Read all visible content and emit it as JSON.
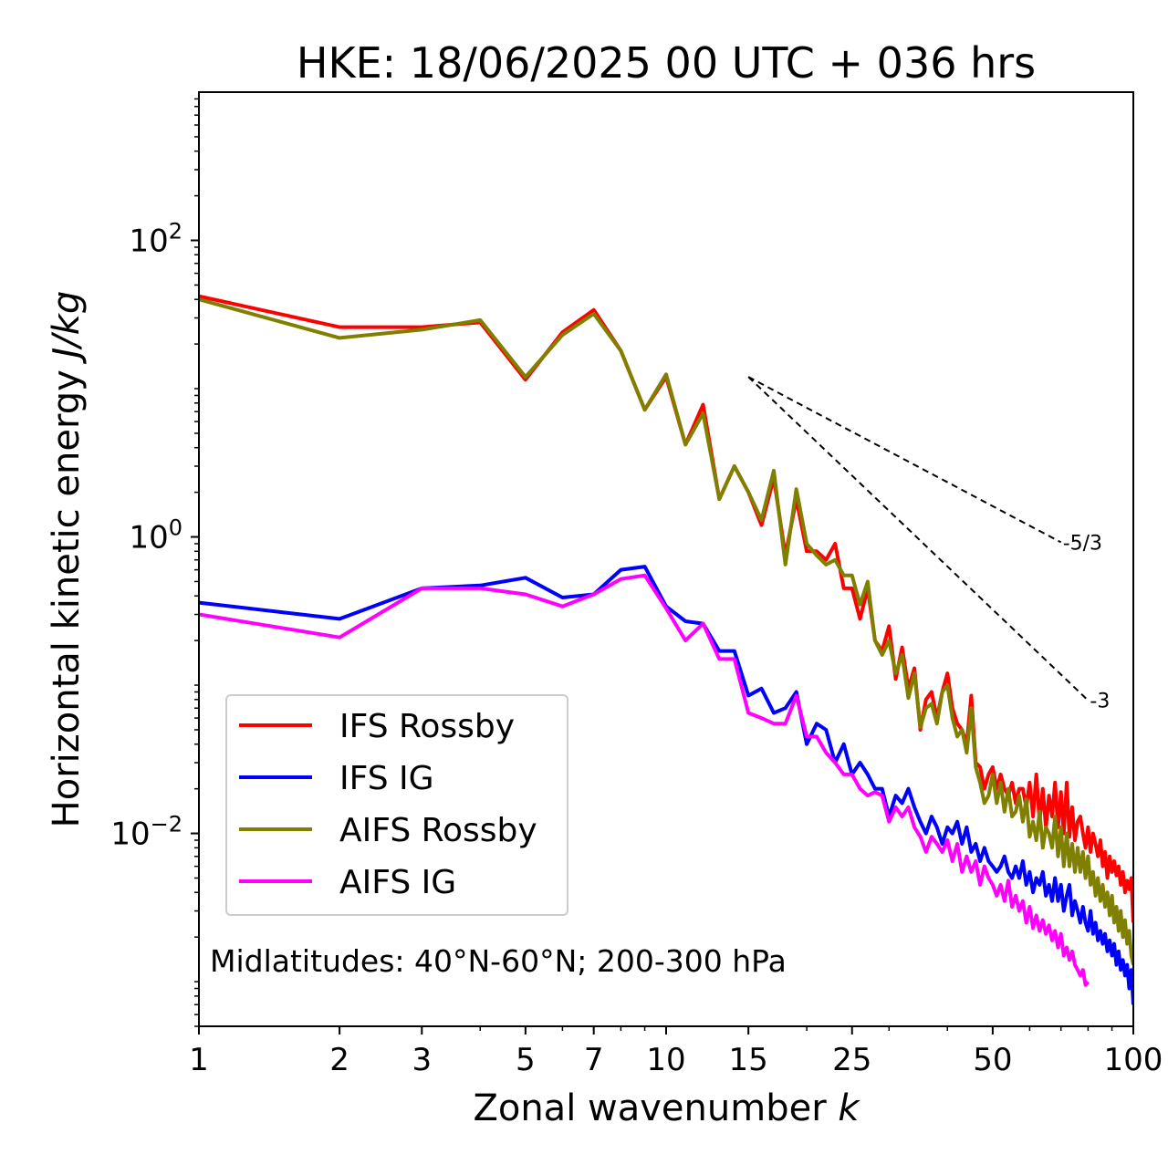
{
  "chart_data": {
    "type": "line",
    "title": "HKE: 18/06/2025 00 UTC + 036 hrs",
    "xlabel": "Zonal wavenumber ",
    "xlabel_var": "k",
    "ylabel": "Horizontal kinetic energy ",
    "ylabel_unit": "J/kg",
    "xscale": "log",
    "yscale": "log",
    "xlim": [
      1,
      100
    ],
    "ylim": [
      0.0005,
      1000
    ],
    "grid": false,
    "legend_position": "lower-left",
    "annotation": "Midlatitudes: 40°N-60°N; 200-300 hPa",
    "x_ticks": [
      1,
      2,
      3,
      5,
      7,
      10,
      15,
      25,
      50,
      100
    ],
    "x_tick_labels": [
      "1",
      "2",
      "3",
      "5",
      "7",
      "10",
      "15",
      "25",
      "50",
      "100"
    ],
    "y_ticks": [
      {
        "value": 100,
        "base": "10",
        "exp": "2"
      },
      {
        "value": 1,
        "base": "10",
        "exp": "0"
      },
      {
        "value": 0.01,
        "base": "10",
        "exp": "−2"
      }
    ],
    "reference_lines": [
      {
        "label": "-5/3",
        "slope": -1.6667,
        "x_start": 15,
        "y_start": 12,
        "x_end": 70,
        "y_end": 0.92
      },
      {
        "label": "-3",
        "slope": -3,
        "x_start": 15,
        "y_start": 12,
        "x_end": 80,
        "y_end": 0.079
      }
    ],
    "series": [
      {
        "name": "IFS Rossby",
        "color": "#ff0000",
        "x": [
          1,
          2,
          3,
          4,
          5,
          6,
          7,
          8,
          9,
          10,
          11,
          12,
          13,
          14,
          15,
          16,
          17,
          18,
          19,
          20,
          21,
          22,
          23,
          24,
          25,
          26,
          27,
          28,
          29,
          30,
          31,
          32,
          33,
          34,
          35,
          36,
          37,
          38,
          39,
          40,
          41,
          42,
          43,
          44,
          45,
          46,
          47,
          48,
          49,
          50,
          51,
          52,
          53,
          54,
          55,
          56,
          57,
          58,
          59,
          60,
          61,
          62,
          63,
          64,
          65,
          66,
          67,
          68,
          69,
          70,
          71,
          72,
          73,
          74,
          75,
          76,
          77,
          78,
          79,
          80,
          81,
          82,
          83,
          84,
          85,
          86,
          87,
          88,
          89,
          90,
          91,
          92,
          93,
          94,
          95,
          96,
          97,
          98,
          99,
          100
        ],
        "y": [
          42,
          26,
          26,
          28,
          11.5,
          24,
          34,
          18,
          7.2,
          12,
          4.2,
          7.8,
          1.8,
          3.0,
          2.0,
          1.2,
          2.5,
          0.75,
          1.8,
          0.8,
          0.8,
          0.7,
          0.9,
          0.45,
          0.45,
          0.28,
          0.45,
          0.2,
          0.17,
          0.25,
          0.11,
          0.18,
          0.095,
          0.13,
          0.05,
          0.08,
          0.09,
          0.06,
          0.09,
          0.12,
          0.07,
          0.055,
          0.05,
          0.04,
          0.085,
          0.03,
          0.028,
          0.02,
          0.025,
          0.028,
          0.02,
          0.025,
          0.02,
          0.018,
          0.022,
          0.016,
          0.02,
          0.02,
          0.015,
          0.022,
          0.013,
          0.025,
          0.012,
          0.02,
          0.011,
          0.018,
          0.013,
          0.022,
          0.011,
          0.019,
          0.01,
          0.022,
          0.0095,
          0.015,
          0.009,
          0.012,
          0.013,
          0.01,
          0.008,
          0.011,
          0.0075,
          0.01,
          0.0085,
          0.007,
          0.009,
          0.006,
          0.0075,
          0.005,
          0.007,
          0.0055,
          0.0065,
          0.0052,
          0.006,
          0.0045,
          0.0055,
          0.004,
          0.0048,
          0.0042,
          0.005,
          0.0025
        ]
      },
      {
        "name": "IFS IG",
        "color": "#0000ff",
        "x": [
          1,
          2,
          3,
          4,
          5,
          6,
          7,
          8,
          9,
          10,
          11,
          12,
          13,
          14,
          15,
          16,
          17,
          18,
          19,
          20,
          21,
          22,
          23,
          24,
          25,
          26,
          27,
          28,
          29,
          30,
          31,
          32,
          33,
          34,
          35,
          36,
          37,
          38,
          39,
          40,
          41,
          42,
          43,
          44,
          45,
          46,
          47,
          48,
          49,
          50,
          51,
          52,
          53,
          54,
          55,
          56,
          57,
          58,
          59,
          60,
          61,
          62,
          63,
          64,
          65,
          66,
          67,
          68,
          69,
          70,
          71,
          72,
          73,
          74,
          75,
          76,
          77,
          78,
          79,
          80,
          81,
          82,
          83,
          84,
          85,
          86,
          87,
          88,
          89,
          90,
          91,
          92,
          93,
          94,
          95,
          96,
          97,
          98,
          99,
          100
        ],
        "y": [
          0.36,
          0.28,
          0.45,
          0.47,
          0.53,
          0.39,
          0.41,
          0.6,
          0.63,
          0.34,
          0.27,
          0.26,
          0.17,
          0.17,
          0.085,
          0.095,
          0.065,
          0.07,
          0.09,
          0.04,
          0.055,
          0.05,
          0.03,
          0.04,
          0.025,
          0.03,
          0.025,
          0.02,
          0.02,
          0.013,
          0.018,
          0.016,
          0.02,
          0.015,
          0.012,
          0.01,
          0.013,
          0.011,
          0.0085,
          0.011,
          0.01,
          0.012,
          0.0085,
          0.011,
          0.0075,
          0.0085,
          0.0065,
          0.008,
          0.0065,
          0.006,
          0.0055,
          0.006,
          0.007,
          0.0055,
          0.005,
          0.006,
          0.005,
          0.0065,
          0.0045,
          0.0055,
          0.004,
          0.005,
          0.0045,
          0.0055,
          0.0038,
          0.0045,
          0.0035,
          0.005,
          0.0035,
          0.0045,
          0.003,
          0.0038,
          0.0045,
          0.0028,
          0.0035,
          0.003,
          0.0025,
          0.0032,
          0.0025,
          0.0022,
          0.003,
          0.0021,
          0.0025,
          0.0019,
          0.0022,
          0.0018,
          0.0021,
          0.0016,
          0.0019,
          0.0015,
          0.0018,
          0.0013,
          0.0016,
          0.0012,
          0.0014,
          0.0011,
          0.0013,
          0.0009,
          0.0012,
          0.0007
        ]
      },
      {
        "name": "AIFS Rossby",
        "color": "#808000",
        "x": [
          1,
          2,
          3,
          4,
          5,
          6,
          7,
          8,
          9,
          10,
          11,
          12,
          13,
          14,
          15,
          16,
          17,
          18,
          19,
          20,
          21,
          22,
          23,
          24,
          25,
          26,
          27,
          28,
          29,
          30,
          31,
          32,
          33,
          34,
          35,
          36,
          37,
          38,
          39,
          40,
          41,
          42,
          43,
          44,
          45,
          46,
          47,
          48,
          49,
          50,
          51,
          52,
          53,
          54,
          55,
          56,
          57,
          58,
          59,
          60,
          61,
          62,
          63,
          64,
          65,
          66,
          67,
          68,
          69,
          70,
          71,
          72,
          73,
          74,
          75,
          76,
          77,
          78,
          79,
          80,
          81,
          82,
          83,
          84,
          85,
          86,
          87,
          88,
          89,
          90,
          91,
          92,
          93,
          94,
          95,
          96,
          97,
          98,
          99,
          100
        ],
        "y": [
          40,
          22,
          25,
          29,
          12,
          23,
          32,
          18,
          7.2,
          12.5,
          4.2,
          6.8,
          1.8,
          3.0,
          2.0,
          1.3,
          2.8,
          0.65,
          2.1,
          0.9,
          0.75,
          0.65,
          0.7,
          0.55,
          0.55,
          0.35,
          0.5,
          0.2,
          0.16,
          0.2,
          0.12,
          0.16,
          0.082,
          0.12,
          0.052,
          0.07,
          0.075,
          0.055,
          0.09,
          0.1,
          0.06,
          0.045,
          0.05,
          0.035,
          0.07,
          0.028,
          0.022,
          0.016,
          0.018,
          0.025,
          0.016,
          0.022,
          0.014,
          0.02,
          0.013,
          0.014,
          0.018,
          0.012,
          0.017,
          0.0095,
          0.012,
          0.009,
          0.014,
          0.008,
          0.011,
          0.01,
          0.008,
          0.013,
          0.007,
          0.011,
          0.006,
          0.01,
          0.006,
          0.0085,
          0.0055,
          0.008,
          0.0055,
          0.0075,
          0.005,
          0.007,
          0.0045,
          0.0055,
          0.0038,
          0.005,
          0.0035,
          0.0045,
          0.0032,
          0.004,
          0.0028,
          0.0038,
          0.0025,
          0.0032,
          0.0022,
          0.003,
          0.002,
          0.0026,
          0.0018,
          0.0022,
          0.0015,
          0.0013
        ]
      },
      {
        "name": "AIFS IG",
        "color": "#ff00ff",
        "x": [
          1,
          2,
          3,
          4,
          5,
          6,
          7,
          8,
          9,
          10,
          11,
          12,
          13,
          14,
          15,
          16,
          17,
          18,
          19,
          20,
          21,
          22,
          23,
          24,
          25,
          26,
          27,
          28,
          29,
          30,
          31,
          32,
          33,
          34,
          35,
          36,
          37,
          38,
          39,
          40,
          41,
          42,
          43,
          44,
          45,
          46,
          47,
          48,
          49,
          50,
          51,
          52,
          53,
          54,
          55,
          56,
          57,
          58,
          59,
          60,
          61,
          62,
          63,
          64,
          65,
          66,
          67,
          68,
          69,
          70,
          71,
          72,
          73,
          74,
          75,
          76,
          77,
          78,
          79,
          80
        ],
        "y": [
          0.3,
          0.21,
          0.45,
          0.45,
          0.41,
          0.34,
          0.41,
          0.52,
          0.55,
          0.33,
          0.2,
          0.26,
          0.15,
          0.15,
          0.065,
          0.06,
          0.055,
          0.055,
          0.085,
          0.045,
          0.045,
          0.035,
          0.03,
          0.025,
          0.025,
          0.02,
          0.018,
          0.019,
          0.018,
          0.012,
          0.015,
          0.013,
          0.015,
          0.011,
          0.0095,
          0.0075,
          0.0095,
          0.0085,
          0.0075,
          0.009,
          0.0065,
          0.0085,
          0.0055,
          0.007,
          0.0055,
          0.0065,
          0.0045,
          0.006,
          0.005,
          0.0045,
          0.0038,
          0.0045,
          0.0035,
          0.0048,
          0.0032,
          0.0038,
          0.003,
          0.0035,
          0.0025,
          0.0032,
          0.0023,
          0.0028,
          0.0022,
          0.0026,
          0.0021,
          0.0024,
          0.0019,
          0.0022,
          0.0017,
          0.0021,
          0.0015,
          0.0017,
          0.0014,
          0.0016,
          0.0013,
          0.0012,
          0.0011,
          0.0012,
          0.00095,
          0.001
        ]
      }
    ]
  }
}
